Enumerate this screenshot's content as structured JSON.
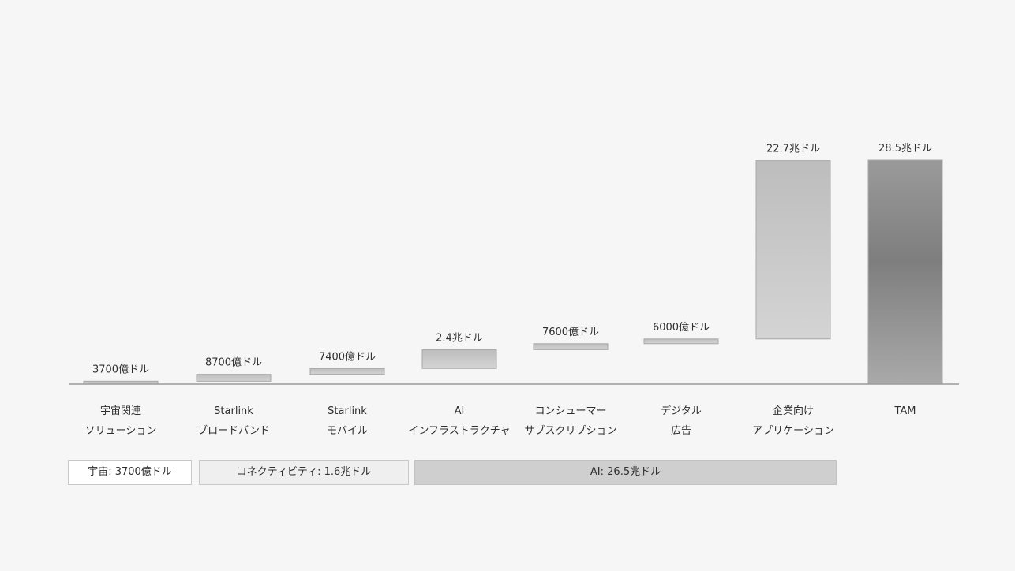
{
  "chart_data": {
    "type": "bar",
    "subtype": "waterfall",
    "unit_note": "",
    "categories": [
      [
        "宇宙関連",
        "ソリューション"
      ],
      [
        "Starlink",
        "ブロードバンド"
      ],
      [
        "Starlink",
        "モバイル"
      ],
      [
        "AI",
        "インフラストラクチャ"
      ],
      [
        "コンシューマー",
        "サブスクリプション"
      ],
      [
        "デジタル",
        "広告"
      ],
      [
        "企業向け",
        "アプリケーション"
      ],
      [
        "TAM"
      ]
    ],
    "values": [
      0.37,
      0.87,
      0.74,
      2.4,
      0.76,
      0.6,
      22.7,
      28.5
    ],
    "value_labels": [
      "3700億ドル",
      "8700億ドル",
      "7400億ドル",
      "2.4兆ドル",
      "7600億ドル",
      "6000億ドル",
      "22.7兆ドル",
      "28.5兆ドル"
    ],
    "total_index": 7,
    "ylim": [
      0,
      28.5
    ],
    "bar_fill": "#c7c7c7",
    "total_fill": "#858585",
    "groups": [
      {
        "label": "宇宙: 3700億ドル",
        "from": 0,
        "to": 0
      },
      {
        "label": "コネクティビティ: 1.6兆ドル",
        "from": 1,
        "to": 2
      },
      {
        "label": "AI: 26.5兆ドル",
        "from": 3,
        "to": 6
      }
    ]
  }
}
